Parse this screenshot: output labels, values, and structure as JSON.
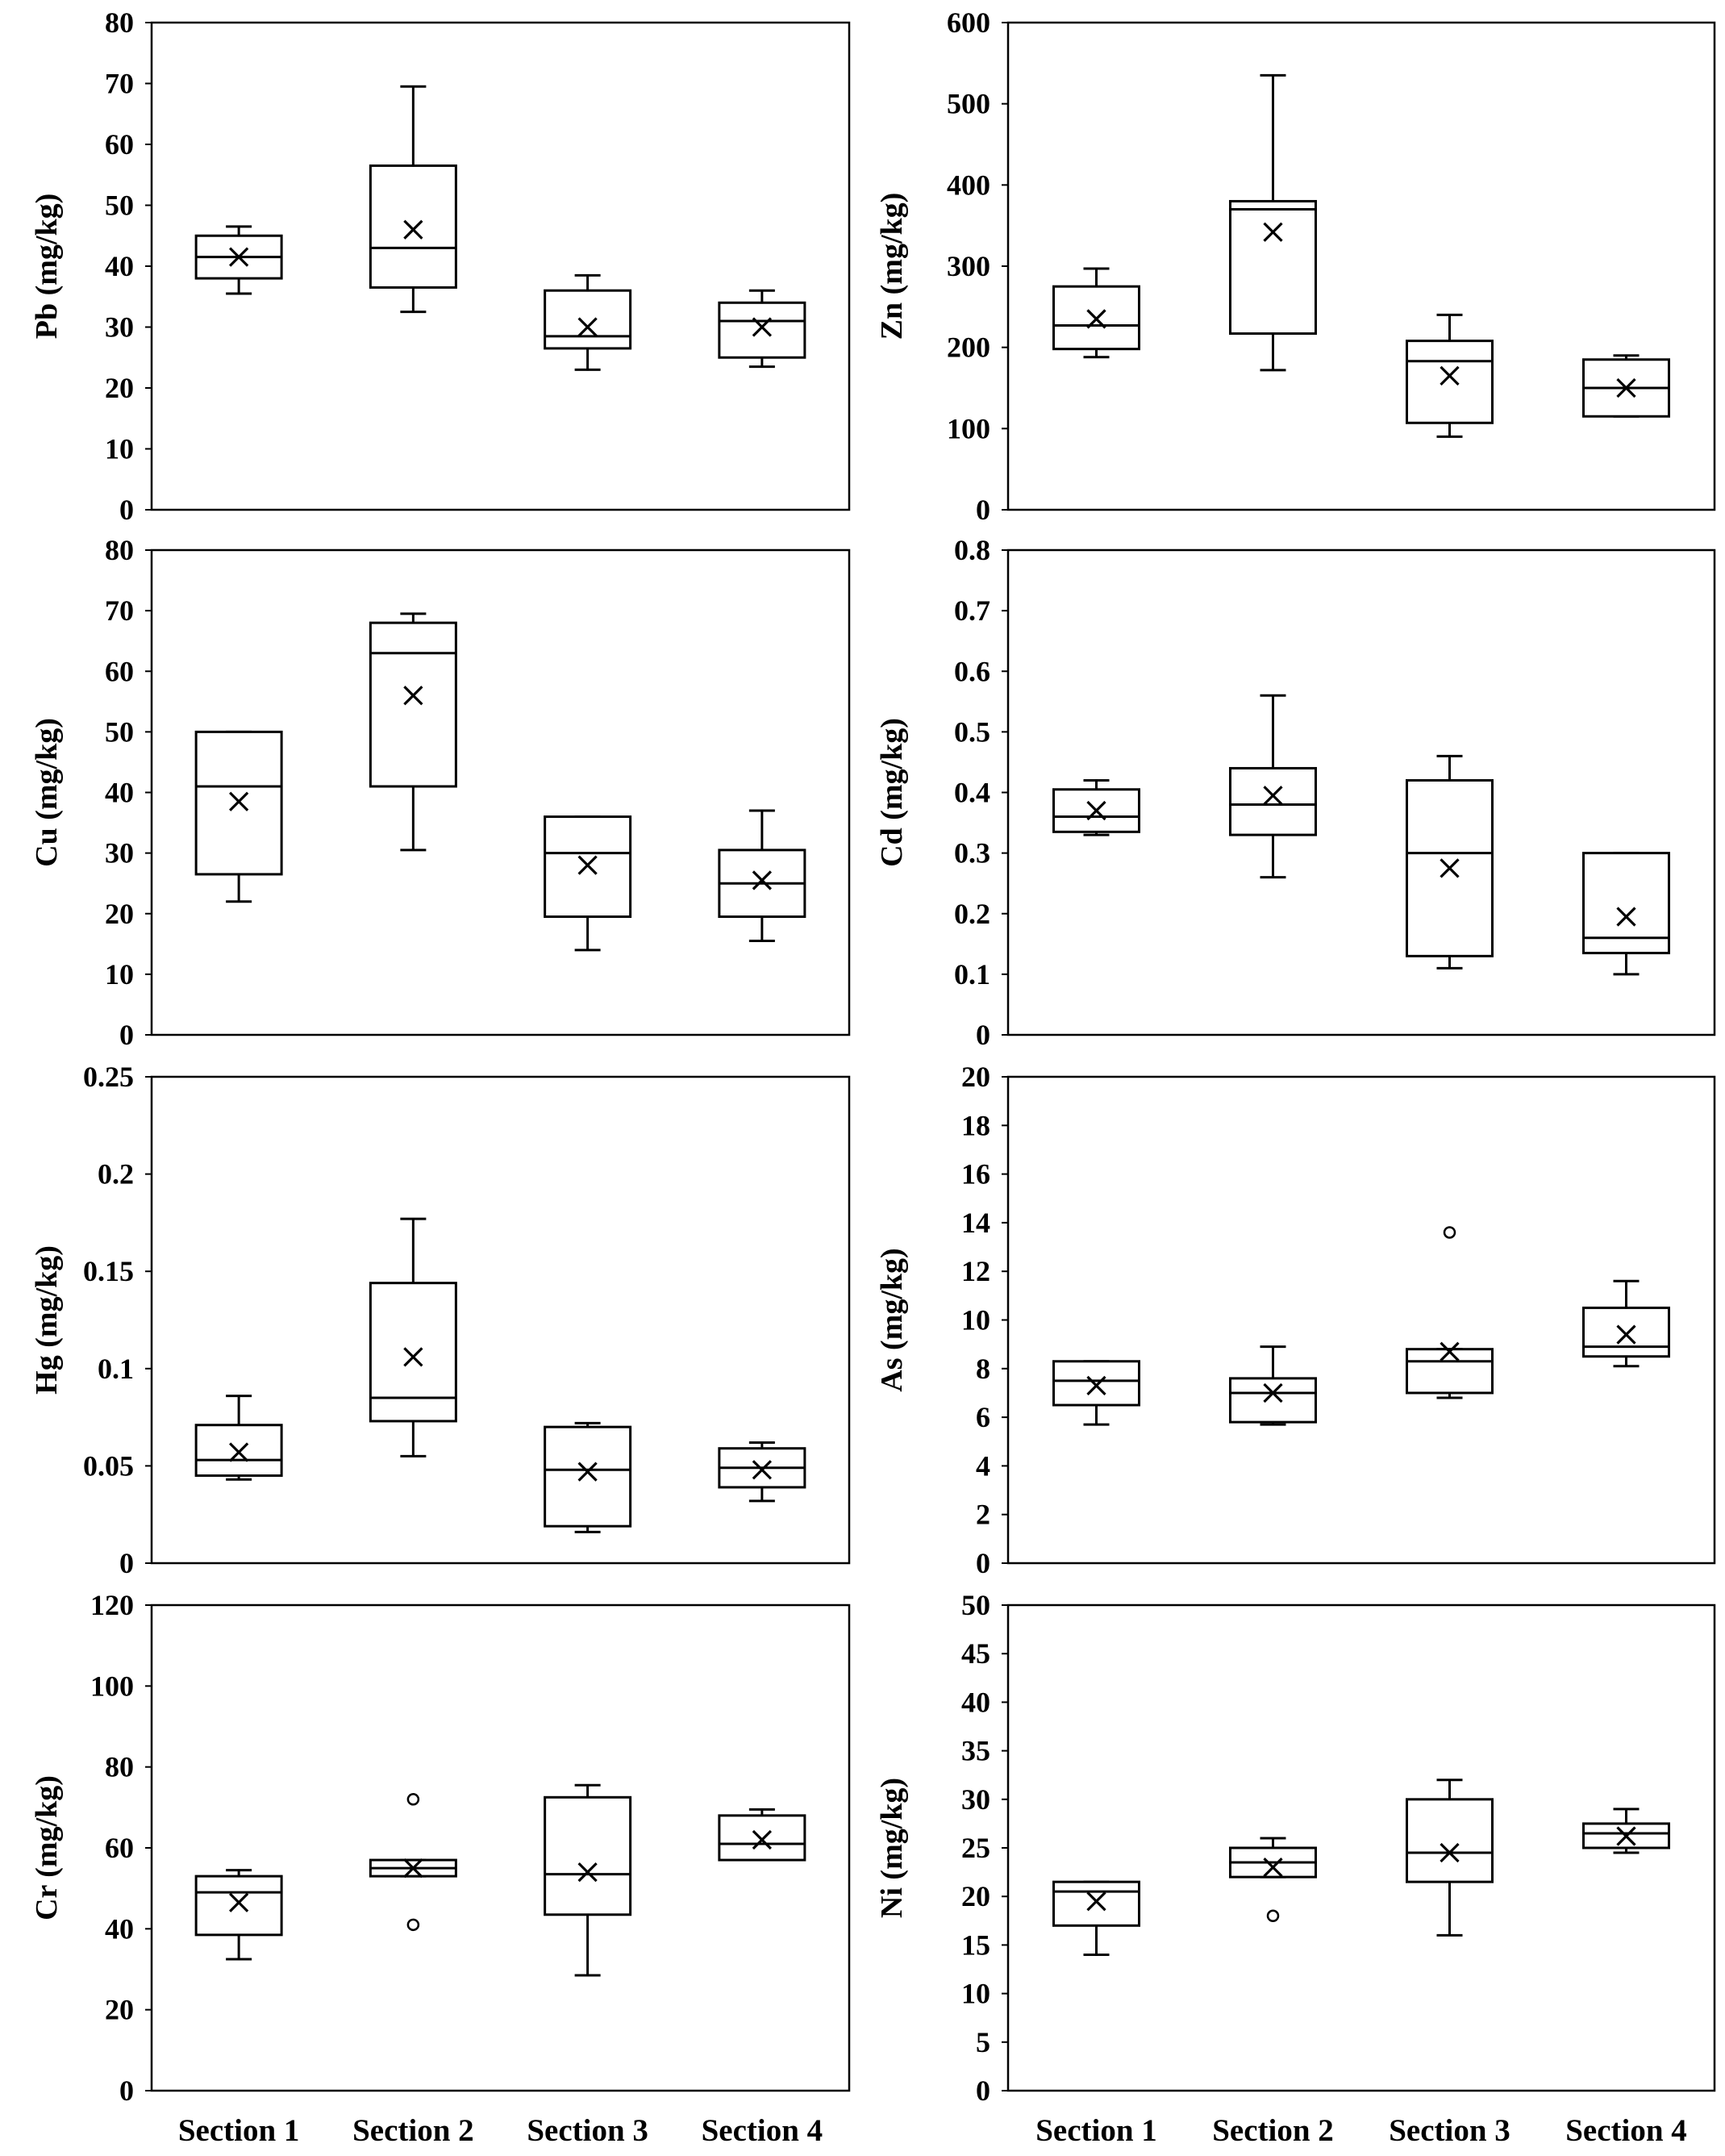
{
  "chart_data": [
    {
      "type": "box",
      "ylabel": "Pb (mg/kg)",
      "ylim": [
        0,
        80
      ],
      "yticks": [
        "0",
        "10",
        "20",
        "30",
        "40",
        "50",
        "60",
        "70",
        "80"
      ],
      "categories": [
        "Section 1",
        "Section 2",
        "Section 3",
        "Section 4"
      ],
      "boxes": [
        {
          "min": 35.5,
          "q1": 38,
          "median": 41.5,
          "q3": 45,
          "max": 46.5,
          "mean": 41.5,
          "outliers": []
        },
        {
          "min": 32.5,
          "q1": 36.5,
          "median": 43,
          "q3": 56.5,
          "max": 69.5,
          "mean": 46,
          "outliers": []
        },
        {
          "min": 23,
          "q1": 26.5,
          "median": 28.5,
          "q3": 36,
          "max": 38.5,
          "mean": 30,
          "outliers": []
        },
        {
          "min": 23.5,
          "q1": 25,
          "median": 31,
          "q3": 34,
          "max": 36,
          "mean": 30,
          "outliers": []
        }
      ]
    },
    {
      "type": "box",
      "ylabel": "Zn (mg/kg)",
      "ylim": [
        0,
        600
      ],
      "yticks": [
        "0",
        "100",
        "200",
        "300",
        "400",
        "500",
        "600"
      ],
      "categories": [
        "Section 1",
        "Section 2",
        "Section 3",
        "Section 4"
      ],
      "boxes": [
        {
          "min": 188,
          "q1": 198,
          "median": 227,
          "q3": 275,
          "max": 297,
          "mean": 235,
          "outliers": []
        },
        {
          "min": 172,
          "q1": 217,
          "median": 370,
          "q3": 380,
          "max": 535,
          "mean": 342,
          "outliers": []
        },
        {
          "min": 90,
          "q1": 107,
          "median": 183,
          "q3": 208,
          "max": 240,
          "mean": 165,
          "outliers": []
        },
        {
          "min": 115,
          "q1": 115,
          "median": 150,
          "q3": 185,
          "max": 190,
          "mean": 150,
          "outliers": []
        }
      ]
    },
    {
      "type": "box",
      "ylabel": "Cu (mg/kg)",
      "ylim": [
        0,
        80
      ],
      "yticks": [
        "0",
        "10",
        "20",
        "30",
        "40",
        "50",
        "60",
        "70",
        "80"
      ],
      "categories": [
        "Section 1",
        "Section 2",
        "Section 3",
        "Section 4"
      ],
      "boxes": [
        {
          "min": 22,
          "q1": 26.5,
          "median": 41,
          "q3": 50,
          "max": 50,
          "mean": 38.5,
          "outliers": []
        },
        {
          "min": 30.5,
          "q1": 41,
          "median": 63,
          "q3": 68,
          "max": 69.5,
          "mean": 56,
          "outliers": []
        },
        {
          "min": 14,
          "q1": 19.5,
          "median": 30,
          "q3": 36,
          "max": 36,
          "mean": 28,
          "outliers": []
        },
        {
          "min": 15.5,
          "q1": 19.5,
          "median": 25,
          "q3": 30.5,
          "max": 37,
          "mean": 25.5,
          "outliers": []
        }
      ]
    },
    {
      "type": "box",
      "ylabel": "Cd (mg/kg)",
      "ylim": [
        0,
        0.8
      ],
      "yticks": [
        "0",
        "0.1",
        "0.2",
        "0.3",
        "0.4",
        "0.5",
        "0.6",
        "0.7",
        "0.8"
      ],
      "categories": [
        "Section 1",
        "Section 2",
        "Section 3",
        "Section 4"
      ],
      "boxes": [
        {
          "min": 0.33,
          "q1": 0.335,
          "median": 0.36,
          "q3": 0.405,
          "max": 0.42,
          "mean": 0.37,
          "outliers": []
        },
        {
          "min": 0.26,
          "q1": 0.33,
          "median": 0.38,
          "q3": 0.44,
          "max": 0.56,
          "mean": 0.395,
          "outliers": []
        },
        {
          "min": 0.11,
          "q1": 0.13,
          "median": 0.3,
          "q3": 0.42,
          "max": 0.46,
          "mean": 0.275,
          "outliers": []
        },
        {
          "min": 0.1,
          "q1": 0.135,
          "median": 0.16,
          "q3": 0.3,
          "max": 0.3,
          "mean": 0.195,
          "outliers": []
        }
      ]
    },
    {
      "type": "box",
      "ylabel": "Hg (mg/kg)",
      "ylim": [
        0,
        0.25
      ],
      "yticks": [
        "0",
        "0.05",
        "0.1",
        "0.15",
        "0.2",
        "0.25"
      ],
      "categories": [
        "Section 1",
        "Section 2",
        "Section 3",
        "Section 4"
      ],
      "boxes": [
        {
          "min": 0.043,
          "q1": 0.045,
          "median": 0.053,
          "q3": 0.071,
          "max": 0.086,
          "mean": 0.057,
          "outliers": []
        },
        {
          "min": 0.055,
          "q1": 0.073,
          "median": 0.085,
          "q3": 0.144,
          "max": 0.177,
          "mean": 0.106,
          "outliers": []
        },
        {
          "min": 0.016,
          "q1": 0.019,
          "median": 0.048,
          "q3": 0.07,
          "max": 0.072,
          "mean": 0.047,
          "outliers": []
        },
        {
          "min": 0.032,
          "q1": 0.039,
          "median": 0.049,
          "q3": 0.059,
          "max": 0.062,
          "mean": 0.048,
          "outliers": []
        }
      ]
    },
    {
      "type": "box",
      "ylabel": "As (mg/kg)",
      "ylim": [
        0,
        20
      ],
      "yticks": [
        "0",
        "2",
        "4",
        "6",
        "8",
        "10",
        "12",
        "14",
        "16",
        "18",
        "20"
      ],
      "categories": [
        "Section 1",
        "Section 2",
        "Section 3",
        "Section 4"
      ],
      "boxes": [
        {
          "min": 5.7,
          "q1": 6.5,
          "median": 7.5,
          "q3": 8.3,
          "max": 8.3,
          "mean": 7.3,
          "outliers": []
        },
        {
          "min": 5.7,
          "q1": 5.8,
          "median": 7.0,
          "q3": 7.6,
          "max": 8.9,
          "mean": 7.0,
          "outliers": []
        },
        {
          "min": 6.8,
          "q1": 7.0,
          "median": 8.3,
          "q3": 8.8,
          "max": 8.8,
          "mean": 8.7,
          "outliers": [
            13.6
          ]
        },
        {
          "min": 8.1,
          "q1": 8.5,
          "median": 8.9,
          "q3": 10.5,
          "max": 11.6,
          "mean": 9.4,
          "outliers": []
        }
      ]
    },
    {
      "type": "box",
      "ylabel": "Cr (mg/kg)",
      "ylim": [
        0,
        120
      ],
      "yticks": [
        "0",
        "20",
        "40",
        "60",
        "80",
        "100",
        "120"
      ],
      "categories": [
        "Section 1",
        "Section 2",
        "Section 3",
        "Section 4"
      ],
      "xlabels_shown": true,
      "boxes": [
        {
          "min": 32.5,
          "q1": 38.5,
          "median": 49,
          "q3": 53,
          "max": 54.5,
          "mean": 46.5,
          "outliers": []
        },
        {
          "min": 53,
          "q1": 53,
          "median": 55,
          "q3": 57,
          "max": 57,
          "mean": 55,
          "outliers": [
            72,
            41
          ]
        },
        {
          "min": 28.5,
          "q1": 43.5,
          "median": 53.5,
          "q3": 72.5,
          "max": 75.5,
          "mean": 54,
          "outliers": []
        },
        {
          "min": 57,
          "q1": 57,
          "median": 61,
          "q3": 68,
          "max": 69.5,
          "mean": 62,
          "outliers": []
        }
      ]
    },
    {
      "type": "box",
      "ylabel": "Ni (mg/kg)",
      "ylim": [
        0,
        50
      ],
      "yticks": [
        "0",
        "5",
        "10",
        "15",
        "20",
        "25",
        "30",
        "35",
        "40",
        "45",
        "50"
      ],
      "categories": [
        "Section 1",
        "Section 2",
        "Section 3",
        "Section 4"
      ],
      "xlabels_shown": true,
      "boxes": [
        {
          "min": 14,
          "q1": 17,
          "median": 20.5,
          "q3": 21.5,
          "max": 21.5,
          "mean": 19.5,
          "outliers": []
        },
        {
          "min": 22,
          "q1": 22,
          "median": 23.5,
          "q3": 25,
          "max": 26,
          "mean": 23,
          "outliers": [
            18
          ]
        },
        {
          "min": 16,
          "q1": 21.5,
          "median": 24.5,
          "q3": 30,
          "max": 32,
          "mean": 24.5,
          "outliers": []
        },
        {
          "min": 24.5,
          "q1": 25,
          "median": 26.5,
          "q3": 27.5,
          "max": 29,
          "mean": 26.2,
          "outliers": []
        }
      ]
    }
  ]
}
